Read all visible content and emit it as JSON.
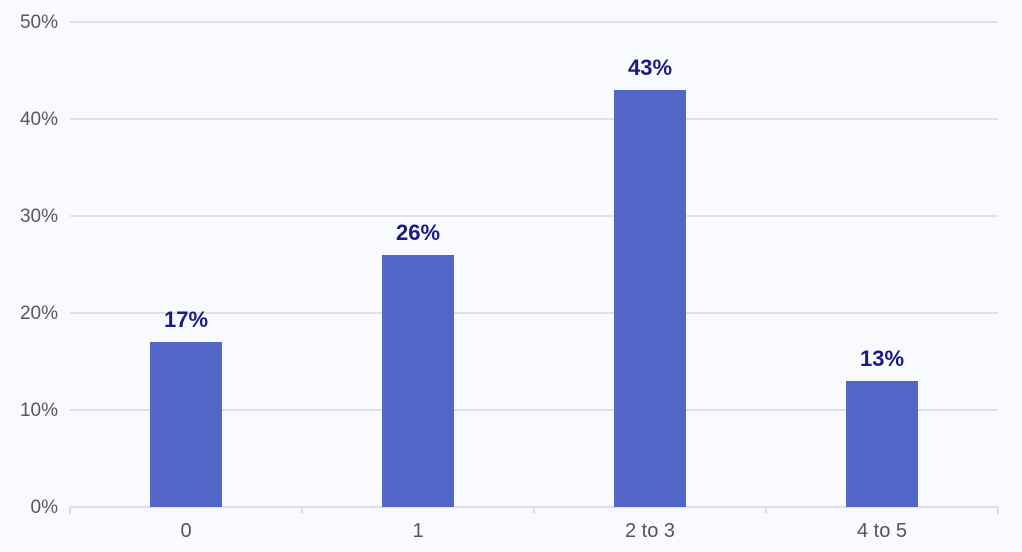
{
  "chart_data": {
    "type": "bar",
    "title": "",
    "xlabel": "",
    "ylabel": "",
    "categories": [
      "0",
      "1",
      "2 to 3",
      "4 to 5"
    ],
    "values": [
      17,
      26,
      43,
      13
    ],
    "value_labels": [
      "17%",
      "26%",
      "43%",
      "13%"
    ],
    "y_tick_values": [
      0,
      10,
      20,
      30,
      40,
      50
    ],
    "y_tick_labels": [
      "0%",
      "10%",
      "20%",
      "30%",
      "40%",
      "50%"
    ],
    "ylim": [
      0,
      50
    ],
    "grid": true,
    "legend": "none",
    "colors": {
      "background": "#f8fafd",
      "bar": "#5266c8",
      "value_label": "#1b1b82",
      "axis_label": "#58595d",
      "x_axis_label": "#54555a",
      "gridline": "#dfe1e5",
      "tick": "#d9dbdf"
    }
  }
}
